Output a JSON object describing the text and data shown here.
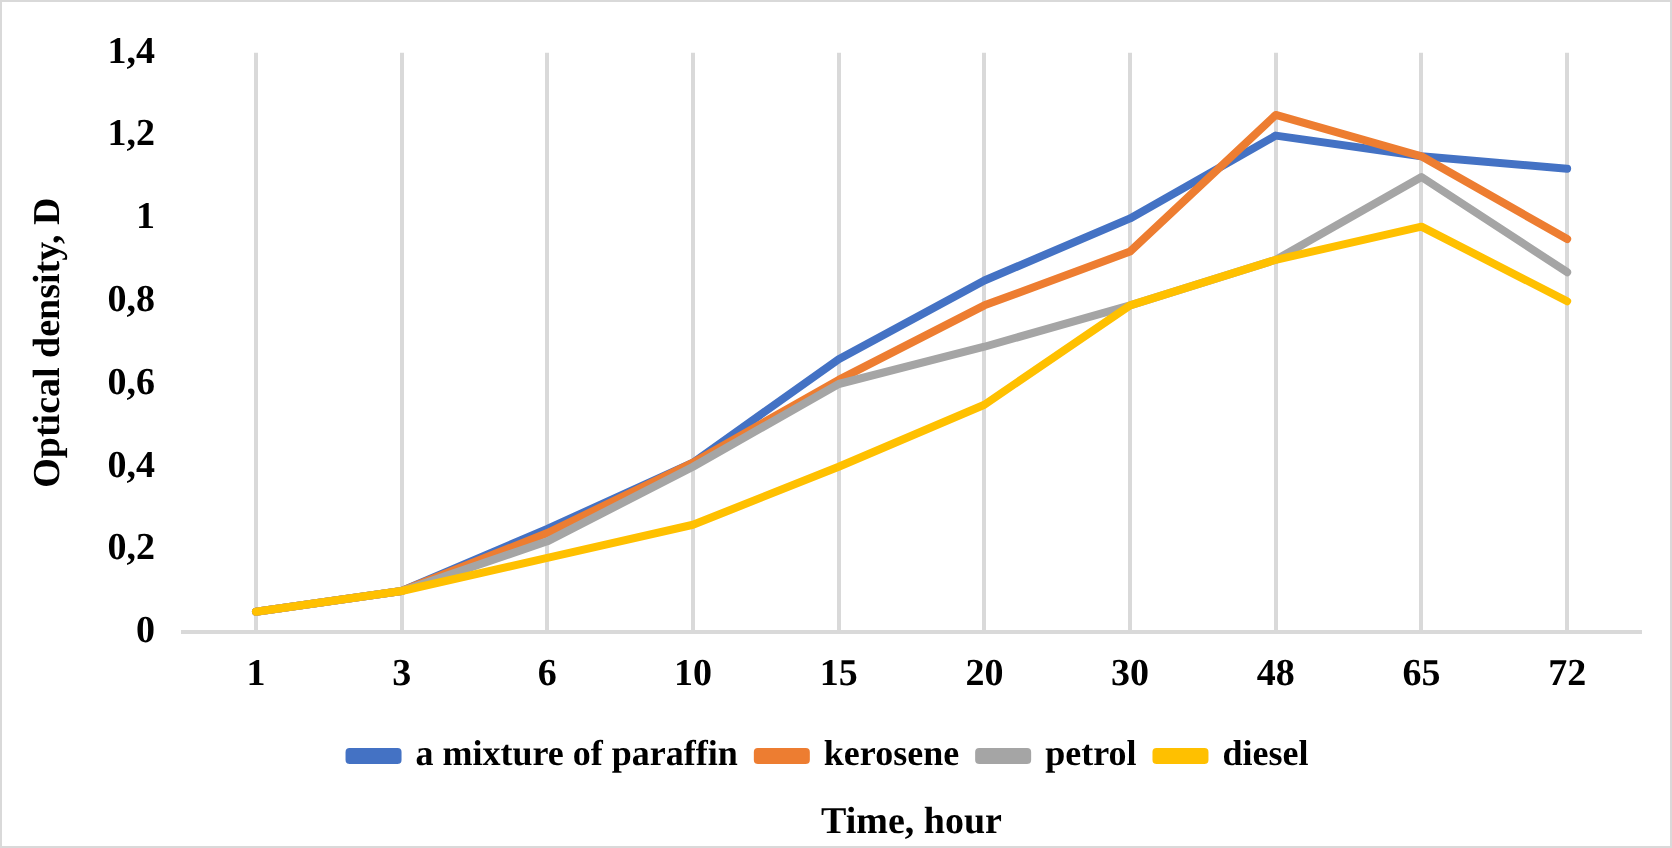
{
  "chart_data": {
    "type": "line",
    "xlabel": "Time, hour",
    "ylabel": "Optical density, D",
    "categories": [
      "1",
      "3",
      "6",
      "10",
      "15",
      "20",
      "30",
      "48",
      "65",
      "72"
    ],
    "ylim": [
      0,
      1.4
    ],
    "yticks": [
      0,
      {
        "value": 0.2,
        "label": "0,2"
      },
      {
        "value": 0.4,
        "label": "0,4"
      },
      {
        "value": 0.6,
        "label": "0,6"
      },
      {
        "value": 0.8,
        "label": "0,8"
      },
      1,
      {
        "value": 1.2,
        "label": "1,2"
      },
      {
        "value": 1.4,
        "label": "1,4"
      }
    ],
    "grid": "x",
    "legend": "bottom",
    "marker": "none",
    "line_style": "solid",
    "series": [
      {
        "name": "a mixture of paraffin",
        "color": "#4472c4",
        "values": [
          0.05,
          0.1,
          0.25,
          0.41,
          0.66,
          0.85,
          1.0,
          1.2,
          1.15,
          1.12
        ]
      },
      {
        "name": "kerosene",
        "color": "#ed7d31",
        "values": [
          0.05,
          0.1,
          0.24,
          0.41,
          0.61,
          0.79,
          0.92,
          1.25,
          1.15,
          0.95
        ]
      },
      {
        "name": "petrol",
        "color": "#a5a5a5",
        "values": [
          0.05,
          0.1,
          0.22,
          0.4,
          0.6,
          0.69,
          0.79,
          0.9,
          1.1,
          0.87
        ]
      },
      {
        "name": "diesel",
        "color": "#ffc000",
        "values": [
          0.05,
          0.1,
          0.18,
          0.26,
          0.4,
          0.55,
          0.79,
          0.9,
          0.98,
          0.8
        ]
      }
    ]
  }
}
